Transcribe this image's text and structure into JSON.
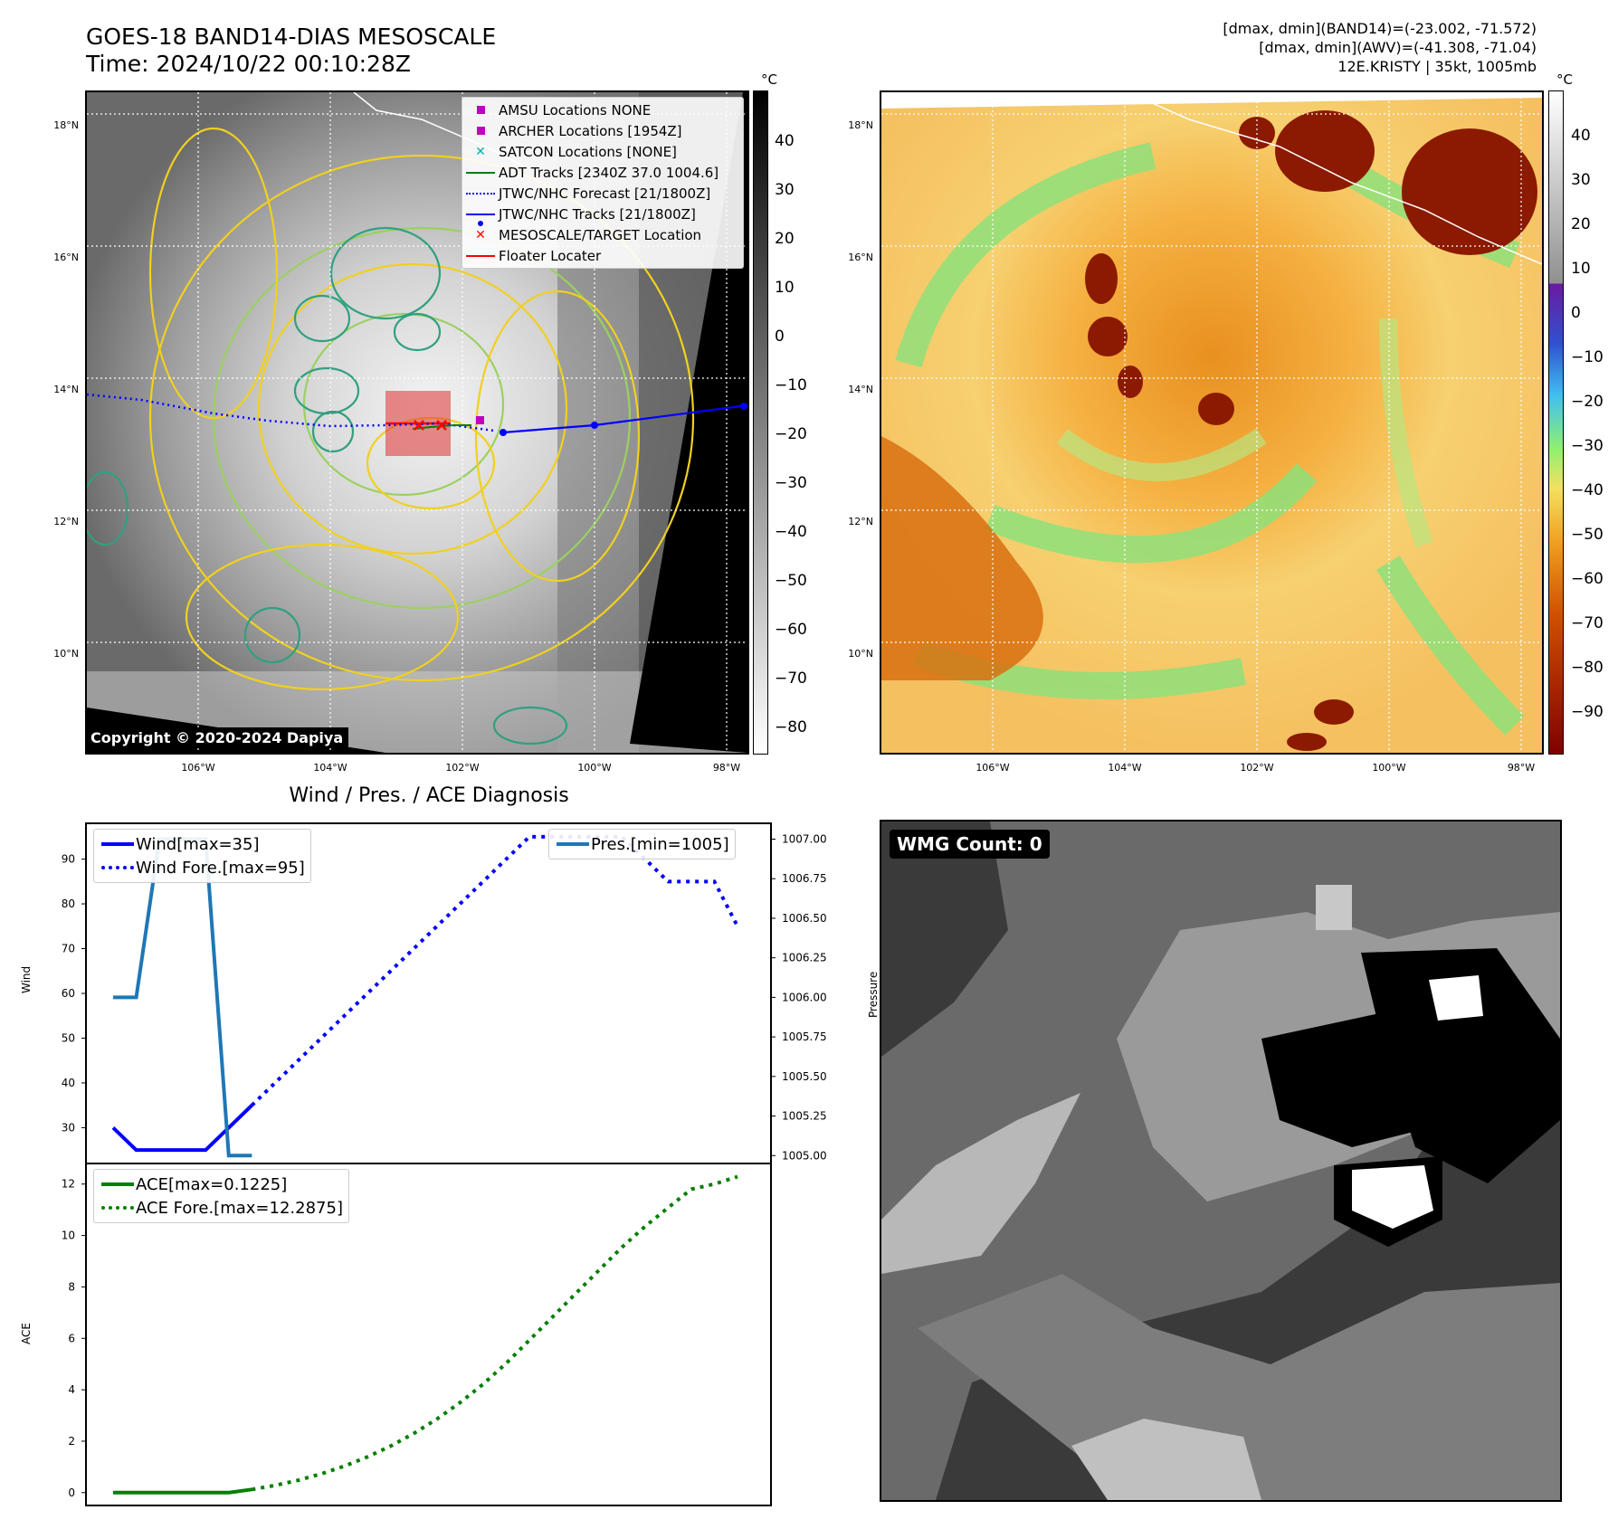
{
  "header": {
    "title_line1": "GOES-18 BAND14-DIAS MESOSCALE",
    "title_line2": "Time: 2024/10/22 00:10:28Z",
    "info_line1": "[dmax, dmin](BAND14)=(-23.002, -71.572)",
    "info_line2": "[dmax, dmin](AWV)=(-41.308, -71.04)",
    "info_line3": "12E.KRISTY | 35kt, 1005mb"
  },
  "map_left": {
    "copyright": "Copyright © 2020-2024 Dapiya",
    "lat_labels": [
      "18°N",
      "16°N",
      "14°N",
      "12°N",
      "10°N"
    ],
    "lon_labels": [
      "106°W",
      "104°W",
      "102°W",
      "100°W",
      "98°W"
    ],
    "colorbar_unit": "°C",
    "colorbar_ticks": [
      "40",
      "30",
      "20",
      "10",
      "0",
      "−10",
      "−20",
      "−30",
      "−40",
      "−50",
      "−60",
      "−70",
      "−80"
    ],
    "legend": [
      {
        "label": "AMSU Locations NONE",
        "symbol": "square",
        "color": "#c000c0"
      },
      {
        "label": "ARCHER Locations [1954Z]",
        "symbol": "square",
        "color": "#c000c0"
      },
      {
        "label": "SATCON Locations [NONE]",
        "symbol": "x",
        "color": "#00b0b0"
      },
      {
        "label": "ADT Tracks [2340Z 37.0 1004.6]",
        "symbol": "line",
        "color": "#008000"
      },
      {
        "label": "JTWC/NHC Forecast [21/1800Z]",
        "symbol": "dotted",
        "color": "#0000ff"
      },
      {
        "label": "JTWC/NHC Tracks [21/1800Z]",
        "symbol": "line-dot",
        "color": "#0000ff"
      },
      {
        "label": "MESOSCALE/TARGET Location",
        "symbol": "x",
        "color": "#ff0000"
      },
      {
        "label": "Floater Locater",
        "symbol": "line",
        "color": "#ff0000"
      }
    ]
  },
  "map_right": {
    "lat_labels": [
      "18°N",
      "16°N",
      "14°N",
      "12°N",
      "10°N"
    ],
    "lon_labels": [
      "106°W",
      "104°W",
      "102°W",
      "100°W",
      "98°W"
    ],
    "colorbar_unit": "°C",
    "colorbar_ticks": [
      "40",
      "30",
      "20",
      "10",
      "0",
      "−10",
      "−20",
      "−30",
      "−40",
      "−50",
      "−60",
      "−70",
      "−80",
      "−90"
    ]
  },
  "wmg": {
    "label": "WMG Count: 0"
  },
  "colors": {
    "wind": "#0000ff",
    "pressure": "#1f77b4",
    "ace": "#008000"
  },
  "chart_data": [
    {
      "type": "line",
      "title": "Wind / Pres. / ACE Diagnosis",
      "ylabel": "Wind",
      "y2label": "Pressure",
      "ylim": [
        22,
        98
      ],
      "y2lim": [
        1004.95,
        1007.1
      ],
      "yticks": [
        30,
        40,
        50,
        60,
        70,
        80,
        90
      ],
      "y2ticks": [
        "1005.00",
        "1005.25",
        "1005.50",
        "1005.75",
        "1006.00",
        "1006.25",
        "1006.50",
        "1006.75",
        "1007.00"
      ],
      "series": [
        {
          "name": "Wind[max=35]",
          "style": "solid",
          "axis": "left",
          "x": [
            0,
            1,
            2,
            3,
            4,
            5,
            6
          ],
          "y": [
            30,
            25,
            25,
            25,
            25,
            30,
            35
          ]
        },
        {
          "name": "Wind Fore.[max=95]",
          "style": "dotted",
          "axis": "left",
          "x": [
            6,
            7,
            8,
            9,
            10,
            11,
            12,
            13,
            14,
            15,
            16,
            17,
            18,
            19,
            20,
            21,
            22,
            23,
            24,
            25,
            26,
            27
          ],
          "y": [
            35,
            40,
            45,
            50,
            55,
            60,
            65,
            70,
            75,
            80,
            85,
            90,
            95,
            95,
            95,
            95,
            95,
            90,
            85,
            85,
            85,
            75
          ]
        },
        {
          "name": "Pres.[min=1005]",
          "style": "solid",
          "axis": "right",
          "x": [
            0,
            1,
            2,
            3,
            4,
            5,
            6
          ],
          "y": [
            1006,
            1006,
            1007,
            1007,
            1007,
            1005,
            1005
          ]
        }
      ]
    },
    {
      "type": "line",
      "ylabel": "ACE",
      "ylim": [
        -0.5,
        12.8
      ],
      "yticks": [
        0,
        2,
        4,
        6,
        8,
        10,
        12
      ],
      "series": [
        {
          "name": "ACE[max=0.1225]",
          "style": "solid",
          "x": [
            0,
            1,
            2,
            3,
            4,
            5,
            6
          ],
          "y": [
            0,
            0,
            0,
            0,
            0,
            0,
            0.1225
          ]
        },
        {
          "name": "ACE Fore.[max=12.2875]",
          "style": "dotted",
          "x": [
            6,
            7,
            8,
            9,
            10,
            11,
            12,
            13,
            14,
            15,
            16,
            17,
            18,
            19,
            20,
            21,
            22,
            23,
            24,
            25,
            26,
            27
          ],
          "y": [
            0.1225,
            0.28,
            0.48,
            0.73,
            1.03,
            1.39,
            1.81,
            2.3,
            2.86,
            3.5,
            4.22,
            5.03,
            5.93,
            6.83,
            7.74,
            8.64,
            9.54,
            10.35,
            11.08,
            11.8,
            12.0,
            12.2875
          ]
        }
      ]
    }
  ]
}
